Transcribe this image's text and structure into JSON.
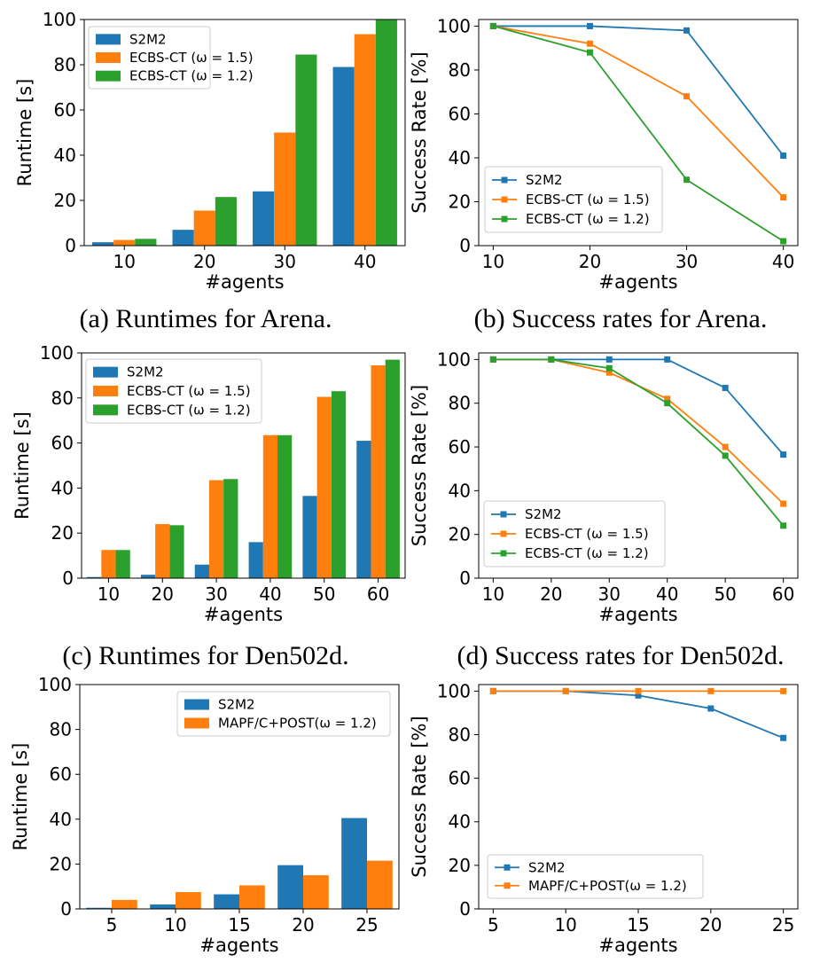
{
  "colors": {
    "s2m2": "#1f77b4",
    "ecbs15": "#ff7f0e",
    "ecbs12": "#2ca02c",
    "mapfc": "#ff7f0e"
  },
  "captions": [
    "(a) Runtimes for Arena.",
    "(b) Success rates for Arena.",
    "(c) Runtimes for Den502d.",
    "(d) Success rates for Den502d.",
    "",
    ""
  ],
  "chart_data": [
    {
      "id": "a",
      "type": "bar",
      "xlabel": "#agents",
      "ylabel": "Runtime [s]",
      "categories": [
        "10",
        "20",
        "30",
        "40"
      ],
      "ylim": [
        0,
        100
      ],
      "yticks": [
        0,
        20,
        40,
        60,
        80,
        100
      ],
      "legend": "top-left",
      "series": [
        {
          "name": "S2M2",
          "color": "#1f77b4",
          "values": [
            1.5,
            7,
            24,
            79
          ]
        },
        {
          "name": "ECBS-CT (ω = 1.5)",
          "color": "#ff7f0e",
          "values": [
            2.5,
            15.5,
            50,
            93.5
          ]
        },
        {
          "name": "ECBS-CT (ω = 1.2)",
          "color": "#2ca02c",
          "values": [
            3,
            21.5,
            84.5,
            100
          ]
        }
      ]
    },
    {
      "id": "b",
      "type": "line",
      "xlabel": "#agents",
      "ylabel": "Success Rate [%]",
      "x": [
        10,
        20,
        30,
        40
      ],
      "xlim": [
        8.5,
        41.5
      ],
      "xticks": [
        10,
        20,
        30,
        40
      ],
      "ylim": [
        0,
        103
      ],
      "yticks": [
        0,
        20,
        40,
        60,
        80,
        100
      ],
      "legend": "bottom-left",
      "series": [
        {
          "name": "S2M2",
          "color": "#1f77b4",
          "values": [
            100,
            100,
            98,
            41
          ]
        },
        {
          "name": "ECBS-CT (ω = 1.5)",
          "color": "#ff7f0e",
          "values": [
            100,
            92,
            68,
            22
          ]
        },
        {
          "name": "ECBS-CT (ω = 1.2)",
          "color": "#2ca02c",
          "values": [
            100,
            88,
            30,
            2
          ]
        }
      ]
    },
    {
      "id": "c",
      "type": "bar",
      "xlabel": "#agents",
      "ylabel": "Runtime [s]",
      "categories": [
        "10",
        "20",
        "30",
        "40",
        "50",
        "60"
      ],
      "ylim": [
        0,
        100
      ],
      "yticks": [
        0,
        20,
        40,
        60,
        80,
        100
      ],
      "legend": "top-left",
      "series": [
        {
          "name": "S2M2",
          "color": "#1f77b4",
          "values": [
            0.5,
            1.5,
            6,
            16,
            36.5,
            61
          ]
        },
        {
          "name": "ECBS-CT (ω = 1.5)",
          "color": "#ff7f0e",
          "values": [
            12.5,
            24,
            43.5,
            63.5,
            80.5,
            94.5
          ]
        },
        {
          "name": "ECBS-CT (ω = 1.2)",
          "color": "#2ca02c",
          "values": [
            12.5,
            23.5,
            44,
            63.5,
            83,
            97
          ]
        }
      ]
    },
    {
      "id": "d",
      "type": "line",
      "xlabel": "#agents",
      "ylabel": "Success Rate [%]",
      "x": [
        10,
        20,
        30,
        40,
        50,
        60
      ],
      "xlim": [
        7.5,
        62.5
      ],
      "xticks": [
        10,
        20,
        30,
        40,
        50,
        60
      ],
      "ylim": [
        0,
        103
      ],
      "yticks": [
        0,
        20,
        40,
        60,
        80,
        100
      ],
      "legend": "bottom-left",
      "series": [
        {
          "name": "S2M2",
          "color": "#1f77b4",
          "values": [
            100,
            100,
            100,
            100,
            87,
            56.5
          ]
        },
        {
          "name": "ECBS-CT (ω = 1.5)",
          "color": "#ff7f0e",
          "values": [
            100,
            100,
            94,
            82,
            60,
            34
          ]
        },
        {
          "name": "ECBS-CT (ω = 1.2)",
          "color": "#2ca02c",
          "values": [
            100,
            100,
            96,
            80,
            56,
            24
          ]
        }
      ]
    },
    {
      "id": "e",
      "type": "bar",
      "xlabel": "#agents",
      "ylabel": "Runtime [s]",
      "categories": [
        "5",
        "10",
        "15",
        "20",
        "25"
      ],
      "ylim": [
        0,
        100
      ],
      "yticks": [
        0,
        20,
        40,
        60,
        80,
        100
      ],
      "legend": "top-right",
      "series": [
        {
          "name": "S2M2",
          "color": "#1f77b4",
          "values": [
            0.5,
            2,
            6.5,
            19.5,
            40.5
          ]
        },
        {
          "name": "MAPF/C+POST(ω = 1.2)",
          "color": "#ff7f0e",
          "values": [
            4,
            7.5,
            10.5,
            15,
            21.5
          ]
        }
      ]
    },
    {
      "id": "f",
      "type": "line",
      "xlabel": "#agents",
      "ylabel": "Success Rate [%]",
      "x": [
        5,
        10,
        15,
        20,
        25
      ],
      "xlim": [
        4,
        26
      ],
      "xticks": [
        5,
        10,
        15,
        20,
        25
      ],
      "ylim": [
        0,
        103
      ],
      "yticks": [
        0,
        20,
        40,
        60,
        80,
        100
      ],
      "legend": "bottom-left",
      "series": [
        {
          "name": "S2M2",
          "color": "#1f77b4",
          "values": [
            100,
            100,
            98,
            92,
            78.5
          ]
        },
        {
          "name": "MAPF/C+POST(ω = 1.2)",
          "color": "#ff7f0e",
          "values": [
            100,
            100,
            100,
            100,
            100
          ]
        }
      ]
    }
  ]
}
